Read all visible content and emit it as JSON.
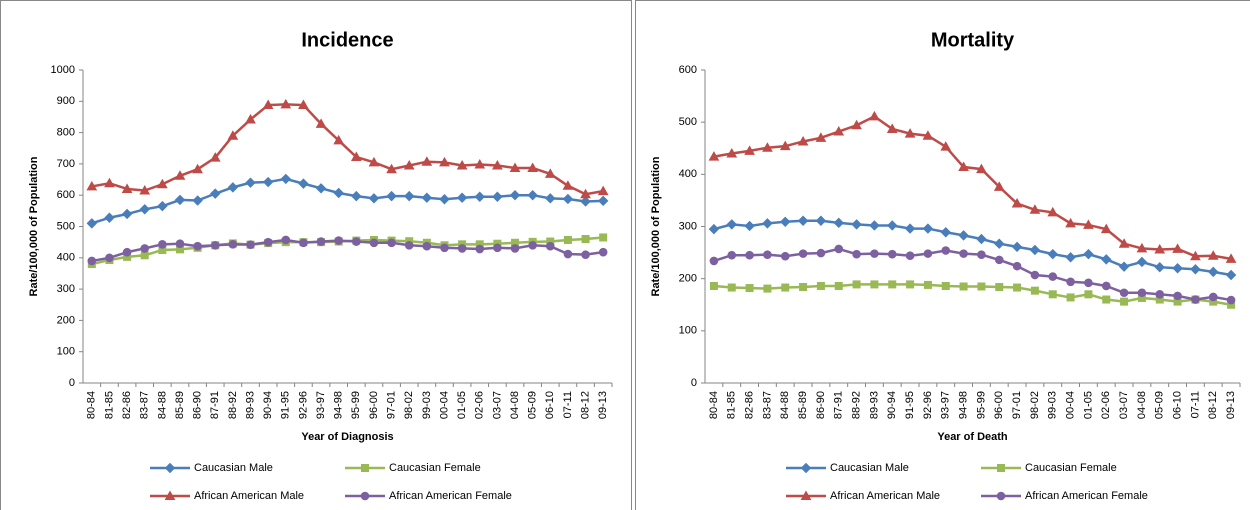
{
  "chart_data": [
    {
      "type": "line",
      "title": "Incidence",
      "x_label": "Year of Diagnosis",
      "y_label": "Rate/100,000 of Population",
      "categories": [
        "80-84",
        "81-85",
        "82-86",
        "83-87",
        "84-88",
        "85-89",
        "86-90",
        "87-91",
        "88-92",
        "89-93",
        "90-94",
        "91-95",
        "92-96",
        "93-97",
        "94-98",
        "95-99",
        "96-00",
        "97-01",
        "98-02",
        "99-03",
        "00-04",
        "01-05",
        "02-06",
        "03-07",
        "04-08",
        "05-09",
        "06-10",
        "07-11",
        "08-12",
        "09-13"
      ],
      "ylim": [
        0,
        1000
      ],
      "yticks": [
        0,
        100,
        200,
        300,
        400,
        500,
        600,
        700,
        800,
        900,
        1000
      ],
      "grid": false,
      "legend": "bottom",
      "series": [
        {
          "name": "Caucasian Male",
          "color": "#4a7ebb",
          "marker": "diamond",
          "values": [
            510,
            528,
            540,
            555,
            565,
            585,
            583,
            605,
            625,
            640,
            642,
            652,
            637,
            622,
            607,
            597,
            590,
            597,
            597,
            592,
            587,
            592,
            595,
            595,
            600,
            600,
            590,
            588,
            580,
            582
          ]
        },
        {
          "name": "Caucasian Female",
          "color": "#98b954",
          "marker": "square",
          "values": [
            380,
            393,
            403,
            408,
            425,
            427,
            432,
            440,
            446,
            442,
            447,
            450,
            450,
            450,
            452,
            455,
            457,
            455,
            453,
            448,
            440,
            443,
            443,
            445,
            448,
            451,
            452,
            457,
            460,
            465
          ]
        },
        {
          "name": "African American Male",
          "color": "#be4b48",
          "marker": "triangle",
          "values": [
            628,
            638,
            620,
            615,
            635,
            662,
            683,
            720,
            790,
            842,
            888,
            890,
            888,
            828,
            775,
            722,
            705,
            683,
            695,
            707,
            705,
            695,
            698,
            695,
            687,
            687,
            668,
            630,
            603,
            613
          ]
        },
        {
          "name": "African American Female",
          "color": "#7d60a0",
          "marker": "circle",
          "values": [
            390,
            400,
            418,
            430,
            443,
            445,
            437,
            440,
            443,
            442,
            450,
            457,
            448,
            452,
            455,
            452,
            448,
            448,
            440,
            437,
            432,
            430,
            428,
            432,
            430,
            440,
            437,
            412,
            410,
            418
          ]
        }
      ]
    },
    {
      "type": "line",
      "title": "Mortality",
      "x_label": "Year of Death",
      "y_label": "Rate/100,000 of Population",
      "categories": [
        "80-84",
        "81-85",
        "82-86",
        "83-87",
        "84-88",
        "85-89",
        "86-90",
        "87-91",
        "88-92",
        "89-93",
        "90-94",
        "91-95",
        "92-96",
        "93-97",
        "94-98",
        "95-99",
        "96-00",
        "97-01",
        "98-02",
        "99-03",
        "00-04",
        "01-05",
        "02-06",
        "03-07",
        "04-08",
        "05-09",
        "06-10",
        "07-11",
        "08-12",
        "09-13"
      ],
      "ylim": [
        0,
        600
      ],
      "yticks": [
        0,
        100,
        200,
        300,
        400,
        500,
        600
      ],
      "grid": false,
      "legend": "bottom",
      "series": [
        {
          "name": "Caucasian Male",
          "color": "#4a7ebb",
          "marker": "diamond",
          "values": [
            295,
            304,
            301,
            306,
            309,
            311,
            311,
            307,
            304,
            302,
            302,
            296,
            296,
            289,
            283,
            276,
            267,
            261,
            255,
            247,
            241,
            247,
            237,
            223,
            232,
            222,
            220,
            218,
            213,
            207
          ]
        },
        {
          "name": "Caucasian Female",
          "color": "#98b954",
          "marker": "square",
          "values": [
            186,
            183,
            182,
            181,
            183,
            184,
            186,
            186,
            189,
            189,
            189,
            189,
            188,
            186,
            185,
            185,
            184,
            183,
            177,
            170,
            164,
            170,
            160,
            156,
            163,
            160,
            156,
            160,
            156,
            150
          ]
        },
        {
          "name": "African American Male",
          "color": "#be4b48",
          "marker": "triangle",
          "values": [
            434,
            440,
            445,
            451,
            454,
            463,
            470,
            482,
            494,
            511,
            487,
            478,
            474,
            453,
            414,
            410,
            376,
            344,
            332,
            327,
            306,
            303,
            295,
            267,
            258,
            256,
            257,
            243,
            244,
            238
          ]
        },
        {
          "name": "African American Female",
          "color": "#7d60a0",
          "marker": "circle",
          "values": [
            234,
            245,
            245,
            246,
            243,
            248,
            249,
            257,
            247,
            248,
            247,
            244,
            248,
            254,
            248,
            246,
            236,
            224,
            207,
            204,
            194,
            192,
            186,
            173,
            173,
            170,
            167,
            160,
            165,
            159
          ]
        }
      ]
    }
  ]
}
